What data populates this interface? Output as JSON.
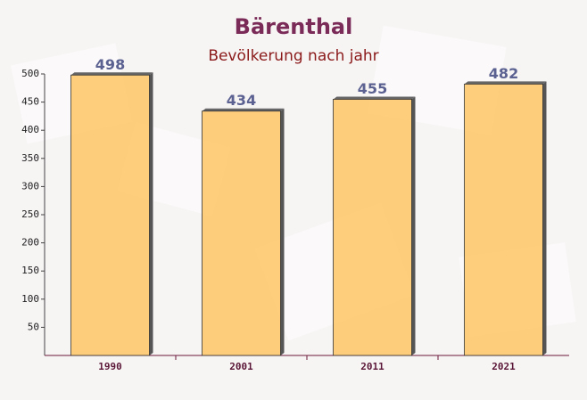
{
  "chart_data": {
    "type": "bar",
    "title": "Bärenthal",
    "subtitle": "Bevölkerung nach jahr",
    "categories": [
      "1990",
      "2001",
      "2011",
      "2021"
    ],
    "values": [
      498,
      434,
      455,
      482
    ],
    "color": "#fec96e",
    "ylim": [
      0,
      500
    ],
    "yticks": [
      50,
      100,
      150,
      200,
      250,
      300,
      350,
      400,
      450,
      500
    ],
    "grid": false
  }
}
